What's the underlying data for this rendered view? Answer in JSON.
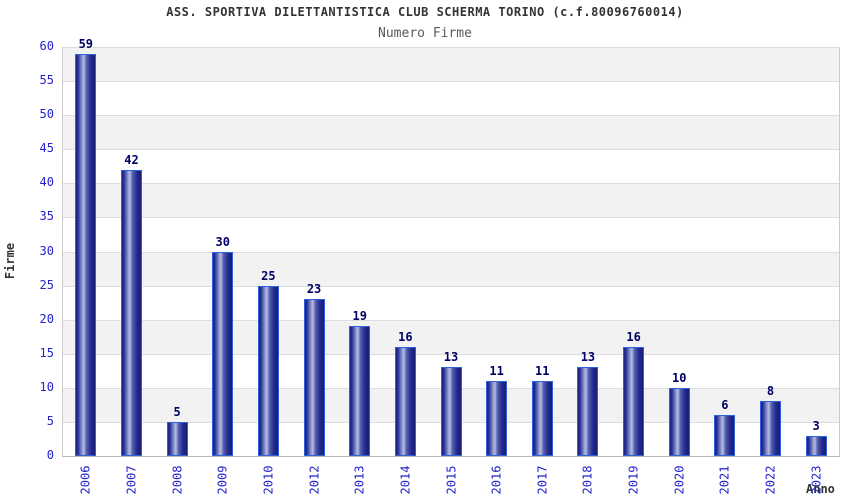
{
  "header": {
    "title": "ASS. SPORTIVA DILETTANTISTICA CLUB SCHERMA TORINO (c.f.80096760014)",
    "subtitle": "Numero Firme"
  },
  "chart_data": {
    "type": "bar",
    "title": "ASS. SPORTIVA DILETTANTISTICA CLUB SCHERMA TORINO (c.f.80096760014)",
    "subtitle": "Numero Firme",
    "xlabel": "Anno",
    "ylabel": "Firme",
    "categories": [
      "2006",
      "2007",
      "2008",
      "2009",
      "2010",
      "2012",
      "2013",
      "2014",
      "2015",
      "2016",
      "2017",
      "2018",
      "2019",
      "2020",
      "2021",
      "2022",
      "2023"
    ],
    "values": [
      59,
      42,
      5,
      30,
      25,
      23,
      19,
      16,
      13,
      11,
      11,
      13,
      16,
      10,
      6,
      8,
      3
    ],
    "ylim": [
      0,
      60
    ],
    "ytick_step": 5,
    "yticks": [
      0,
      5,
      10,
      15,
      20,
      25,
      30,
      35,
      40,
      45,
      50,
      55,
      60
    ],
    "grid": "horizontal gridlines every 5 units with alternating gray/white bands",
    "legend": "none",
    "bar_labels_shown": true,
    "colors": {
      "bar_fill_dark": "#1c2384",
      "bar_fill_light": "#b4bce2",
      "bar_border": "#2f62d8",
      "value_label": "#000066",
      "tick_label": "#2323cc",
      "axis_label": "#333333",
      "title": "#333333",
      "subtitle": "#5a5a5a",
      "band": "#f2f2f2",
      "gridline": "#dddddd",
      "plot_border": "#cccccc",
      "background": "#ffffff"
    }
  }
}
